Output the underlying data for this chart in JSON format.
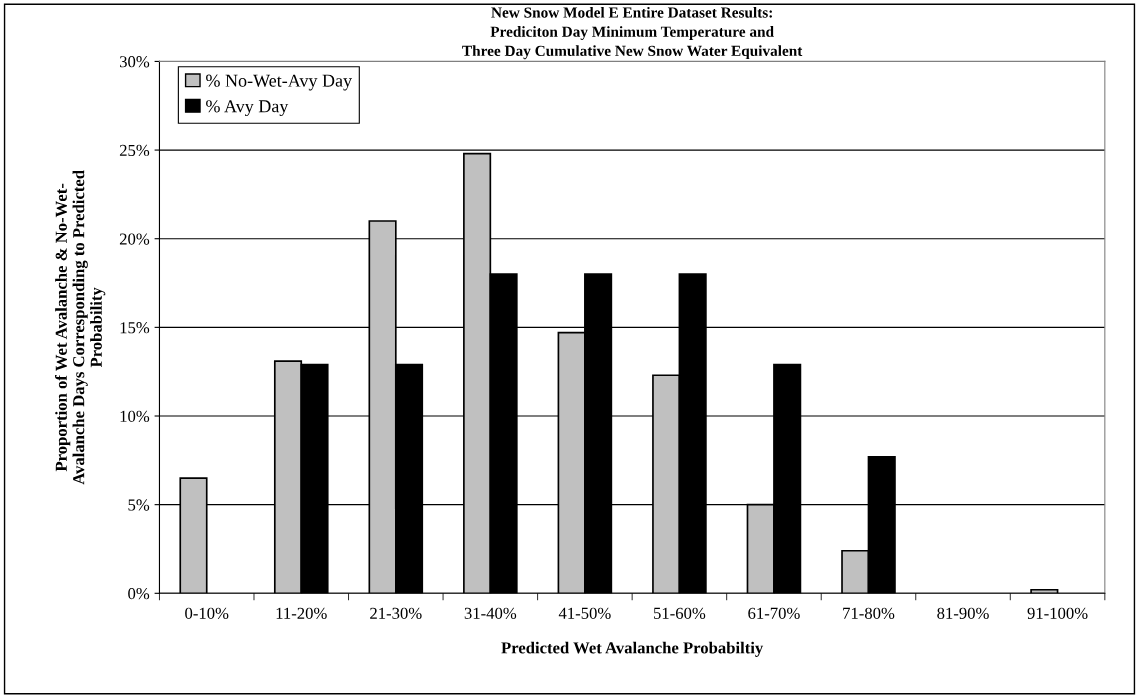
{
  "chart_data": {
    "type": "bar",
    "title": "New Snow Model E Entire Dataset Results:\nPrediciton Day Minimum Temperature and\nThree Day Cumulative New Snow Water Equivalent",
    "xlabel": "Predicted Wet Avalanche Probabiltiy",
    "ylabel": "Proportion of Wet Avalanche & No-Wet-\nAvalanche Days Corresponding to Predicted\nProbability",
    "categories": [
      "0-10%",
      "11-20%",
      "21-30%",
      "31-40%",
      "41-50%",
      "51-60%",
      "61-70%",
      "71-80%",
      "81-90%",
      "91-100%"
    ],
    "series": [
      {
        "name": "% No-Wet-Avy Day",
        "color": "#c0c0c0",
        "values": [
          6.5,
          13.1,
          21.0,
          24.8,
          14.7,
          12.3,
          5.0,
          2.4,
          0,
          0.2
        ]
      },
      {
        "name": "% Avy Day",
        "color": "#000000",
        "values": [
          0,
          12.9,
          12.9,
          18.0,
          18.0,
          18.0,
          12.9,
          7.7,
          0,
          0
        ]
      }
    ],
    "ylim": [
      0,
      30
    ],
    "yticks": [
      {
        "value": 0,
        "label": "0%"
      },
      {
        "value": 5,
        "label": "5%"
      },
      {
        "value": 10,
        "label": "10%"
      },
      {
        "value": 15,
        "label": "15%"
      },
      {
        "value": 20,
        "label": "20%"
      },
      {
        "value": 25,
        "label": "25%"
      },
      {
        "value": 30,
        "label": "30%"
      }
    ],
    "grid": "y",
    "legend": "top left"
  }
}
